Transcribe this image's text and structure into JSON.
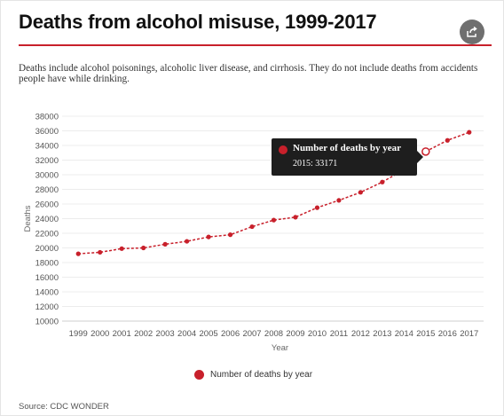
{
  "header": {
    "title": "Deaths from alcohol misuse, 1999-2017",
    "share_icon": "share-icon"
  },
  "subtitle": "Deaths include alcohol poisonings, alcoholic liver disease, and cirrhosis. They do not include deaths from accidents people have while drinking.",
  "tooltip": {
    "series": "Number of deaths by year",
    "value_text": "2015: 33171"
  },
  "legend": {
    "label": "Number of deaths by year"
  },
  "source": "Source: CDC WONDER",
  "colors": {
    "accent": "#c8202b",
    "tooltip_bg": "#1e1e1e"
  },
  "chart_data": {
    "type": "line",
    "title": "Deaths from alcohol misuse, 1999-2017",
    "xlabel": "Year",
    "ylabel": "Deaths",
    "ylim": [
      10000,
      38000
    ],
    "yticks": [
      10000,
      12000,
      14000,
      16000,
      18000,
      20000,
      22000,
      24000,
      26000,
      28000,
      30000,
      32000,
      34000,
      36000,
      38000
    ],
    "grid": "horizontal",
    "legend": "bottom",
    "categories": [
      "1999",
      "2000",
      "2001",
      "2002",
      "2003",
      "2004",
      "2005",
      "2006",
      "2007",
      "2008",
      "2009",
      "2010",
      "2011",
      "2012",
      "2013",
      "2014",
      "2015",
      "2016",
      "2017"
    ],
    "series": [
      {
        "name": "Number of deaths by year",
        "color": "#c8202b",
        "values": [
          19200,
          19400,
          19900,
          20000,
          20500,
          20900,
          21500,
          21800,
          22900,
          23800,
          24200,
          25500,
          26500,
          27600,
          29000,
          30700,
          33171,
          34700,
          35800
        ]
      }
    ],
    "highlighted_point": {
      "category": "2015",
      "value": 33171
    }
  }
}
